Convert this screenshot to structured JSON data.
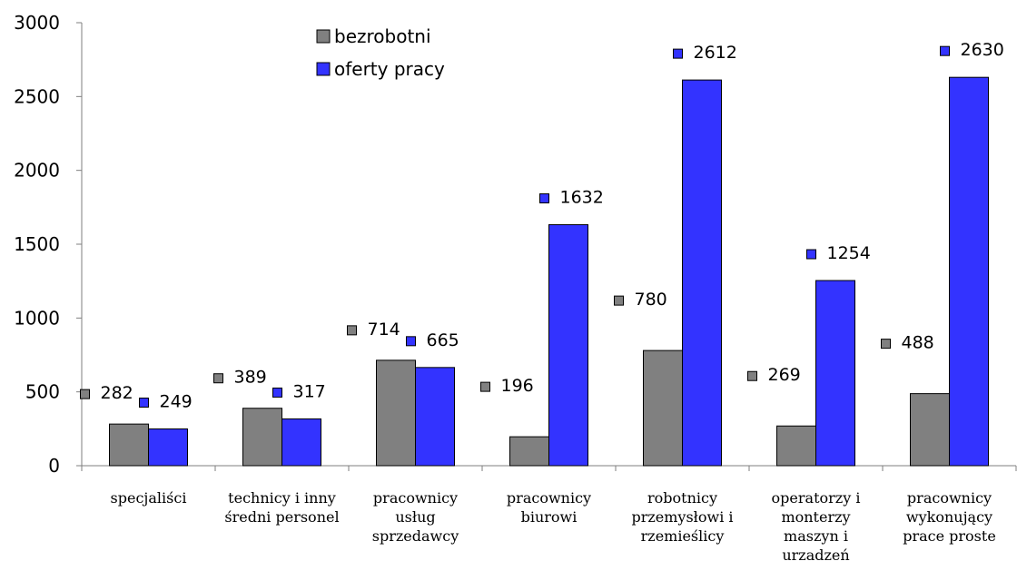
{
  "chart_data": {
    "type": "bar",
    "categories": [
      [
        "specjaliści"
      ],
      [
        "technicy i inny",
        "średni personel"
      ],
      [
        "pracownicy",
        "usług",
        "sprzedawcy"
      ],
      [
        "pracownicy",
        "biurowi"
      ],
      [
        "robotnicy",
        "przemysłowi i",
        "rzemieślicy"
      ],
      [
        "operatorzy i",
        "monterzy",
        "maszyn i",
        "urzadzeń"
      ],
      [
        "pracownicy",
        "wykonujący",
        "prace proste"
      ]
    ],
    "series": [
      {
        "name": "bezrobotni",
        "color": "#808080",
        "values": [
          282,
          389,
          714,
          196,
          780,
          269,
          488
        ]
      },
      {
        "name": "oferty pracy",
        "color": "#3333ff",
        "values": [
          249,
          317,
          665,
          1632,
          2612,
          1254,
          2630
        ]
      }
    ],
    "y_ticks": [
      "0",
      "500",
      "1000",
      "1500",
      "2000",
      "2500",
      "3000"
    ],
    "ylim": [
      0,
      3000
    ],
    "legend_position": "top-center",
    "grid": false
  }
}
